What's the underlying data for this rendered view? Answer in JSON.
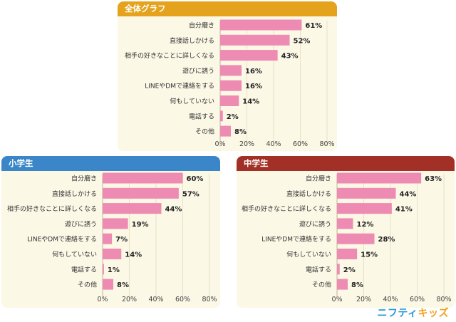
{
  "colors": {
    "bar": "#ee8bb2",
    "panel_bg": "#fbf8e6",
    "header_overall": "#e5a21d",
    "header_elementary": "#3a86c8",
    "header_junior": "#a33026",
    "grid": "#e7e1c6"
  },
  "brand": {
    "part1": "ニフティ",
    "part2": "キッズ"
  },
  "chart_data": [
    {
      "type": "bar",
      "orientation": "horizontal",
      "title": "全体グラフ",
      "categories": [
        "自分磨き",
        "直接話しかける",
        "相手の好きなことに詳しくなる",
        "遊びに誘う",
        "LINEやDMで連絡をする",
        "何もしていない",
        "電話する",
        "その他"
      ],
      "values": [
        61,
        52,
        43,
        16,
        16,
        14,
        2,
        8
      ],
      "value_labels": [
        "61%",
        "52%",
        "43%",
        "16%",
        "16%",
        "14%",
        "2%",
        "8%"
      ],
      "xlim": [
        0,
        80
      ],
      "xticks": [
        "0%",
        "20%",
        "40%",
        "60%",
        "80%"
      ],
      "grid": true
    },
    {
      "type": "bar",
      "orientation": "horizontal",
      "title": "小学生",
      "categories": [
        "自分磨き",
        "直接話しかける",
        "相手の好きなことに詳しくなる",
        "遊びに誘う",
        "LINEやDMで連絡をする",
        "何もしていない",
        "電話する",
        "その他"
      ],
      "values": [
        60,
        57,
        44,
        19,
        7,
        14,
        1,
        8
      ],
      "value_labels": [
        "60%",
        "57%",
        "44%",
        "19%",
        "7%",
        "14%",
        "1%",
        "8%"
      ],
      "xlim": [
        0,
        80
      ],
      "xticks": [
        "0%",
        "20%",
        "40%",
        "60%",
        "80%"
      ],
      "grid": true
    },
    {
      "type": "bar",
      "orientation": "horizontal",
      "title": "中学生",
      "categories": [
        "自分磨き",
        "直接話しかける",
        "相手の好きなことに詳しくなる",
        "遊びに誘う",
        "LINEやDMで連絡をする",
        "何もしていない",
        "電話する",
        "その他"
      ],
      "values": [
        63,
        44,
        41,
        12,
        28,
        15,
        2,
        8
      ],
      "value_labels": [
        "63%",
        "44%",
        "41%",
        "12%",
        "28%",
        "15%",
        "2%",
        "8%"
      ],
      "xlim": [
        0,
        80
      ],
      "xticks": [
        "0%",
        "20%",
        "40%",
        "60%",
        "80%"
      ],
      "grid": true
    }
  ]
}
